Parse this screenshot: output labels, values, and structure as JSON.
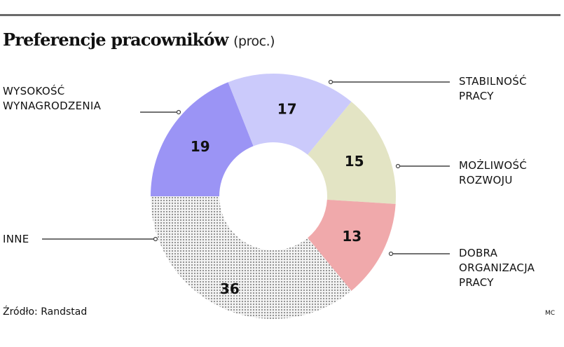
{
  "header": {
    "title": "Preferencje pracowników",
    "unit": "(proc.)"
  },
  "footer": {
    "source": "Źródło: Randstad",
    "credit": "MC"
  },
  "chart_data": {
    "type": "pie",
    "donut": true,
    "title": "Preferencje pracowników (proc.)",
    "series": [
      {
        "label": "WYSOKOŚĆ\nWYNAGRODZENIA",
        "value": 19,
        "color": "#9b94f5"
      },
      {
        "label": "STABILNOŚĆ\nPRACY",
        "value": 17,
        "color": "#cbcafb"
      },
      {
        "label": "MOŻLIWOŚĆ\nROZWOJU",
        "value": 15,
        "color": "#e3e4c4"
      },
      {
        "label": "DOBRA\nORGANIZACJA\nPRACY",
        "value": 13,
        "color": "#f0a9ab"
      },
      {
        "label": "INNE",
        "value": 36,
        "color": "dotted-gray"
      }
    ],
    "start_angle_deg": 270,
    "direction": "clockwise"
  }
}
